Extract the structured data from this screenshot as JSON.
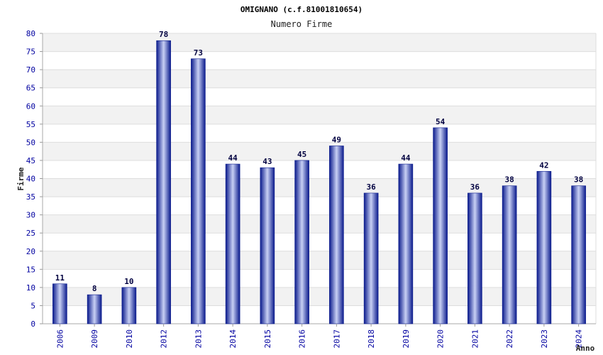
{
  "chart_data": {
    "type": "bar",
    "title": "OMIGNANO (c.f.81001810654)",
    "subtitle": "Numero Firme",
    "xlabel": "Anno",
    "ylabel": "Firme",
    "categories": [
      "2006",
      "2009",
      "2010",
      "2012",
      "2013",
      "2014",
      "2015",
      "2016",
      "2017",
      "2018",
      "2019",
      "2020",
      "2021",
      "2022",
      "2023",
      "2024"
    ],
    "values": [
      11,
      8,
      10,
      78,
      73,
      44,
      43,
      45,
      49,
      36,
      44,
      54,
      36,
      38,
      42,
      38
    ],
    "ylim": [
      0,
      80
    ],
    "yticks": [
      0,
      5,
      10,
      15,
      20,
      25,
      30,
      35,
      40,
      45,
      50,
      55,
      60,
      65,
      70,
      75,
      80
    ],
    "grid": true,
    "legend": "none",
    "colors": {
      "bar_dark": "#0a1a8c",
      "bar_light": "#c8d0f4",
      "band": "#f2f2f2",
      "tick_text": "#0000a0"
    }
  }
}
